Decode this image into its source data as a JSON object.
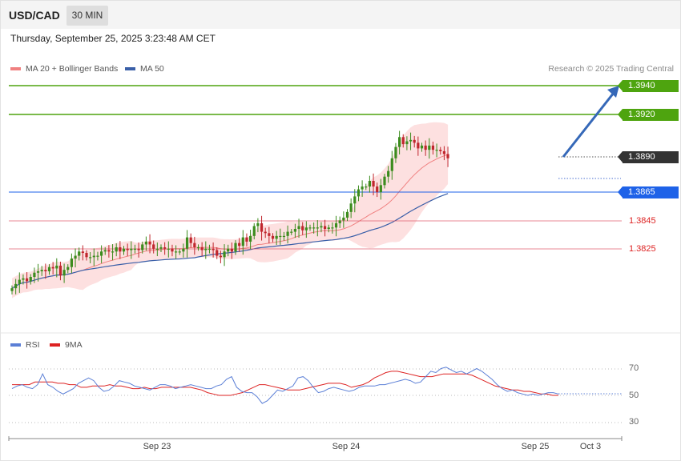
{
  "header": {
    "symbol": "USD/CAD",
    "timeframe": "30 MIN",
    "datetime": "Thursday, September 25, 2025 3:23:48 AM CET"
  },
  "legend": {
    "ma20_label": "MA 20 + Bollinger Bands",
    "ma50_label": "MA 50",
    "rsi_label": "RSI",
    "ma9_label": "9MA",
    "credit": "Research © 2025 Trading Central"
  },
  "colors": {
    "up": "#3c8c1e",
    "down": "#c0262d",
    "ma20": "#f08080",
    "band_fill": "#fde0e0",
    "ma50": "#3a5fa8",
    "resistance": "#4ea40f",
    "pivot": "#1e62e8",
    "support": "#e06070",
    "rsi": "#5b7fd6",
    "rsi_ma": "#dd2222"
  },
  "levels": {
    "r2": "1.3940",
    "r1": "1.3920",
    "last": "1.3890",
    "pivot": "1.3865",
    "s1": "1.3845",
    "s2": "1.3825"
  },
  "rsi_levels": {
    "upper": "70",
    "mid": "50",
    "lower": "30"
  },
  "x_labels": {
    "d1": "Sep 23",
    "d2": "Sep 24",
    "d3": "Sep 25",
    "d4": "Oct 3"
  },
  "chart_data": [
    {
      "type": "candlestick",
      "title": "USD/CAD",
      "y_axis_ticks": [
        1.394,
        1.392,
        1.389,
        1.3865,
        1.3845,
        1.3825
      ],
      "x_ticks": [
        "Sep 23",
        "Sep 24",
        "Sep 25",
        "Oct 3"
      ],
      "close": [
        1.3797,
        1.38,
        1.3803,
        1.3804,
        1.3802,
        1.3805,
        1.3808,
        1.3809,
        1.381,
        1.3809,
        1.3812,
        1.3811,
        1.3813,
        1.3806,
        1.381,
        1.3812,
        1.3818,
        1.382,
        1.3823,
        1.3822,
        1.3819,
        1.3819,
        1.382,
        1.382,
        1.3823,
        1.3824,
        1.3823,
        1.3823,
        1.3826,
        1.3823,
        1.3825,
        1.3824,
        1.3825,
        1.3825,
        1.3824,
        1.3828,
        1.383,
        1.3828,
        1.3825,
        1.3825,
        1.3826,
        1.3825,
        1.3825,
        1.3823,
        1.3823,
        1.3823,
        1.3825,
        1.3833,
        1.3829,
        1.3826,
        1.3826,
        1.3824,
        1.3825,
        1.3825,
        1.3824,
        1.382,
        1.3819,
        1.3823,
        1.3825,
        1.3823,
        1.3829,
        1.3827,
        1.3833,
        1.383,
        1.3834,
        1.3841,
        1.3843,
        1.3837,
        1.3836,
        1.3834,
        1.3832,
        1.3834,
        1.3834,
        1.3834,
        1.3837,
        1.3837,
        1.3839,
        1.3841,
        1.3838,
        1.384,
        1.384,
        1.384,
        1.384,
        1.3841,
        1.3839,
        1.384,
        1.384,
        1.3843,
        1.3845,
        1.3847,
        1.3851,
        1.3857,
        1.3862,
        1.3867,
        1.3869,
        1.3869,
        1.3873,
        1.3869,
        1.3865,
        1.387,
        1.3876,
        1.388,
        1.3889,
        1.3897,
        1.3904,
        1.3899,
        1.3901,
        1.3902,
        1.39,
        1.3896,
        1.3898,
        1.3895,
        1.3898,
        1.3895,
        1.3895,
        1.3894,
        1.3892,
        1.3889
      ],
      "series": [
        {
          "name": "MA 20 + Bollinger Bands"
        },
        {
          "name": "MA 50"
        }
      ]
    },
    {
      "type": "line",
      "title": "RSI",
      "y_axis_ticks": [
        70,
        50,
        30
      ],
      "series": [
        {
          "name": "RSI",
          "values": [
            55.0,
            57.0,
            58.0,
            56.0,
            55.0,
            58.0,
            66.0,
            58.0,
            56.0,
            53.0,
            51.0,
            53.0,
            55.0,
            59.0,
            61.0,
            63.0,
            61.0,
            56.0,
            53.0,
            54.0,
            57.0,
            61.0,
            60.0,
            59.0,
            57.0,
            56.0,
            55.0,
            54.0,
            56.0,
            58.0,
            58.0,
            57.0,
            55.0,
            56.0,
            57.0,
            58.0,
            57.0,
            56.0,
            55.0,
            55.0,
            57.0,
            58.0,
            62.0,
            64.0,
            56.0,
            53.0,
            52.0,
            52.0,
            49.0,
            44.0,
            46.0,
            50.0,
            54.0,
            53.0,
            55.0,
            57.0,
            63.0,
            64.0,
            61.0,
            56.0,
            52.0,
            53.0,
            55.0,
            56.0,
            55.0,
            54.0,
            53.0,
            54.0,
            56.0,
            57.0,
            57.0,
            57.0,
            58.0,
            58.0,
            59.0,
            60.0,
            61.0,
            62.0,
            61.0,
            59.0,
            60.0,
            64.0,
            68.0,
            67.0,
            70.0,
            71.0,
            69.0,
            67.0,
            68.0,
            66.0,
            68.0,
            70.0,
            68.0,
            65.0,
            62.0,
            58.0,
            55.0,
            53.0,
            54.0,
            52.0,
            51.0,
            50.0,
            51.0,
            50.0,
            51.0,
            52.0,
            52.0,
            51.0
          ]
        },
        {
          "name": "9MA",
          "values": [
            58.0,
            58.0,
            58.0,
            58.0,
            60.0,
            60.0,
            60.0,
            60.0,
            59.0,
            59.0,
            58.0,
            58.0,
            56.0,
            56.0,
            57.0,
            57.0,
            57.0,
            58.0,
            57.0,
            57.0,
            56.0,
            55.0,
            55.0,
            56.0,
            55.0,
            55.0,
            56.0,
            56.0,
            56.0,
            56.0,
            56.0,
            56.0,
            55.0,
            54.0,
            52.0,
            51.0,
            50.0,
            50.0,
            50.0,
            51.0,
            52.0,
            54.0,
            56.0,
            58.0,
            58.0,
            57.0,
            56.0,
            55.0,
            54.0,
            54.0,
            54.0,
            55.0,
            56.0,
            57.0,
            58.0,
            59.0,
            59.0,
            59.0,
            58.0,
            56.0,
            57.0,
            58.0,
            60.0,
            63.0,
            65.0,
            67.0,
            68.0,
            68.0,
            67.0,
            66.0,
            65.0,
            64.0,
            64.0,
            64.0,
            65.0,
            66.0,
            66.0,
            66.0,
            66.0,
            66.0,
            65.0,
            63.0,
            61.0,
            59.0,
            57.0,
            56.0,
            55.0,
            54.0,
            54.0,
            53.0,
            53.0,
            52.0,
            51.0,
            51.0,
            50.0,
            50.0
          ]
        }
      ]
    }
  ]
}
